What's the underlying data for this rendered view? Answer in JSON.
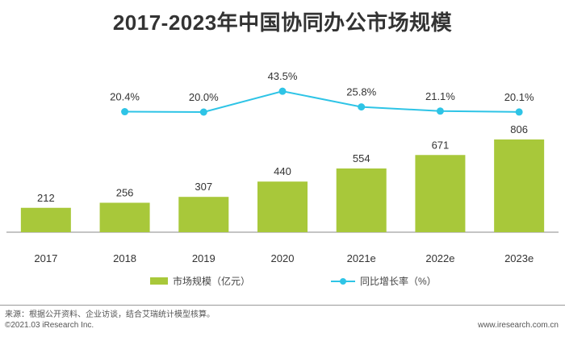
{
  "title": "2017-2023年中国协同办公市场规模",
  "chart_data": {
    "type": "bar",
    "categories": [
      "2017",
      "2018",
      "2019",
      "2020",
      "2021e",
      "2022e",
      "2023e"
    ],
    "series": [
      {
        "name": "市场规模（亿元）",
        "type": "bar",
        "values": [
          212,
          256,
          307,
          440,
          554,
          671,
          806
        ],
        "labels": [
          "212",
          "256",
          "307",
          "440",
          "554",
          "671",
          "806"
        ],
        "color": "#a8c83a"
      },
      {
        "name": "同比增长率（%）",
        "type": "line",
        "values": [
          null,
          20.4,
          20.0,
          43.5,
          25.8,
          21.1,
          20.1
        ],
        "labels": [
          "",
          "20.4%",
          "20.0%",
          "43.5%",
          "25.8%",
          "21.1%",
          "20.1%"
        ],
        "color": "#2ec4e6"
      }
    ],
    "legend_position": "bottom"
  },
  "legend": {
    "bar_label": "市场规模（亿元）",
    "line_label": "同比增长率（%）"
  },
  "footer": {
    "source": "来源：根据公开资料、企业访谈，结合艾瑞统计模型核算。",
    "copyright": "©2021.03 iResearch Inc.",
    "website": "www.iresearch.com.cn"
  }
}
